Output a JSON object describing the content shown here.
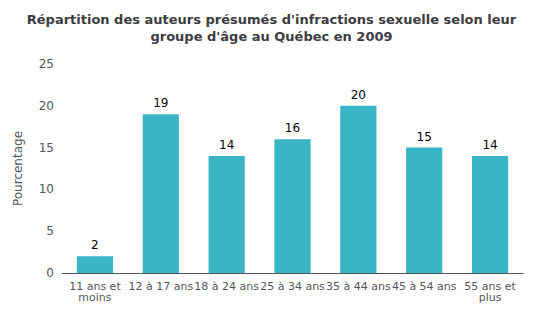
{
  "chart_data": {
    "type": "bar",
    "title": "Répartition des auteurs présumés d'infractions sexuelle selon leur\ngroupe d'âge au Québec en 2009",
    "categories": [
      "11 ans et\nmoins",
      "12 à 17 ans",
      "18 à 24 ans",
      "25 à 34 ans",
      "35 à 44 ans",
      "45 à 54 ans",
      "55 ans et\nplus"
    ],
    "values": [
      2,
      19,
      14,
      16,
      20,
      15,
      14
    ],
    "color": "#3ab5c6",
    "ylabel": "Pourcentage",
    "ylim": [
      0,
      25
    ],
    "yticks": [
      0,
      5,
      10,
      15,
      20,
      25
    ],
    "grid": false,
    "data_labels": true
  }
}
